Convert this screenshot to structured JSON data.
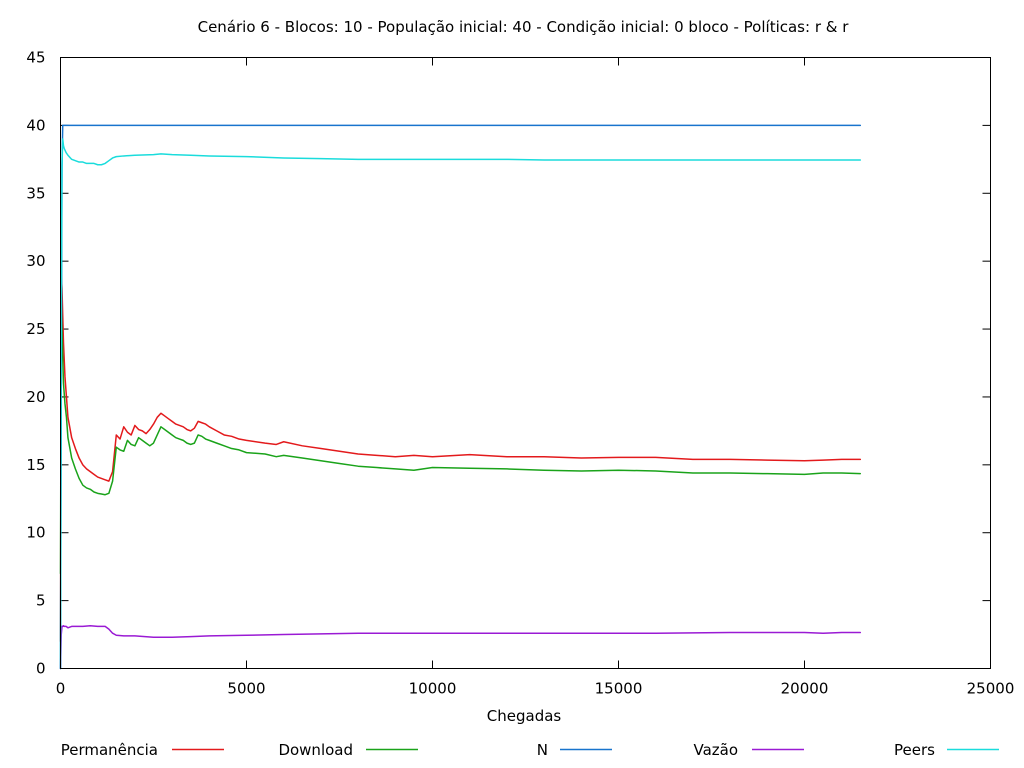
{
  "chart_data": {
    "type": "line",
    "title": "Cenário 6 - Blocos: 10 - População inicial: 40 - Condição inicial: 0 bloco - Políticas: r & r",
    "xlabel": "Chegadas",
    "ylabel": "",
    "xlim": [
      0,
      25000
    ],
    "ylim": [
      0,
      45
    ],
    "xticks": [
      0,
      5000,
      10000,
      15000,
      20000,
      25000
    ],
    "yticks": [
      0,
      5,
      10,
      15,
      20,
      25,
      30,
      35,
      40,
      45
    ],
    "grid": false,
    "legend_position": "bottom",
    "series": [
      {
        "name": "Permanência",
        "color": "#e31a1c",
        "x": [
          0,
          20,
          40,
          60,
          80,
          120,
          160,
          200,
          300,
          400,
          500,
          600,
          700,
          800,
          900,
          1000,
          1100,
          1200,
          1300,
          1400,
          1500,
          1600,
          1700,
          1800,
          1900,
          2000,
          2100,
          2200,
          2300,
          2400,
          2500,
          2600,
          2700,
          2800,
          2900,
          3000,
          3100,
          3200,
          3300,
          3400,
          3500,
          3600,
          3700,
          3800,
          3900,
          4000,
          4200,
          4400,
          4600,
          4800,
          5000,
          5500,
          5800,
          6000,
          6500,
          7000,
          7500,
          8000,
          8500,
          9000,
          9500,
          10000,
          11000,
          12000,
          13000,
          14000,
          15000,
          16000,
          17000,
          18000,
          19000,
          20000,
          20500,
          21000,
          21500
        ],
        "y": [
          2,
          29,
          28,
          26,
          24,
          21.5,
          20,
          18.5,
          17,
          16.2,
          15.5,
          15,
          14.7,
          14.5,
          14.3,
          14.1,
          14,
          13.9,
          13.8,
          14.5,
          17.2,
          16.9,
          17.8,
          17.4,
          17.2,
          17.9,
          17.6,
          17.5,
          17.3,
          17.6,
          18,
          18.5,
          18.8,
          18.6,
          18.4,
          18.2,
          18,
          17.9,
          17.8,
          17.6,
          17.5,
          17.7,
          18.2,
          18.1,
          18,
          17.8,
          17.5,
          17.2,
          17.1,
          16.9,
          16.8,
          16.6,
          16.5,
          16.7,
          16.4,
          16.2,
          16,
          15.8,
          15.7,
          15.6,
          15.7,
          15.6,
          15.75,
          15.6,
          15.6,
          15.5,
          15.55,
          15.55,
          15.4,
          15.4,
          15.35,
          15.3,
          15.35,
          15.4,
          15.4
        ]
      },
      {
        "name": "Download",
        "color": "#1aa31a",
        "x": [
          0,
          20,
          40,
          60,
          80,
          120,
          160,
          200,
          300,
          400,
          500,
          600,
          700,
          800,
          900,
          1000,
          1100,
          1200,
          1300,
          1400,
          1500,
          1600,
          1700,
          1800,
          1900,
          2000,
          2100,
          2200,
          2300,
          2400,
          2500,
          2600,
          2700,
          2800,
          2900,
          3000,
          3100,
          3200,
          3300,
          3400,
          3500,
          3600,
          3700,
          3800,
          3900,
          4000,
          4200,
          4400,
          4600,
          4800,
          5000,
          5500,
          5800,
          6000,
          6500,
          7000,
          7500,
          8000,
          8500,
          9000,
          9500,
          10000,
          11000,
          12000,
          13000,
          14000,
          15000,
          16000,
          17000,
          18000,
          19000,
          20000,
          20500,
          21000,
          21500
        ],
        "y": [
          7,
          27,
          25,
          23,
          21,
          19.5,
          18.5,
          17,
          15.5,
          14.7,
          14,
          13.5,
          13.3,
          13.2,
          13,
          12.9,
          12.85,
          12.8,
          12.9,
          13.8,
          16.3,
          16.1,
          16,
          16.8,
          16.5,
          16.4,
          17,
          16.8,
          16.6,
          16.4,
          16.6,
          17.2,
          17.8,
          17.6,
          17.4,
          17.2,
          17,
          16.9,
          16.8,
          16.6,
          16.5,
          16.6,
          17.2,
          17.1,
          16.9,
          16.8,
          16.6,
          16.4,
          16.2,
          16.1,
          15.9,
          15.8,
          15.6,
          15.7,
          15.5,
          15.3,
          15.1,
          14.9,
          14.8,
          14.7,
          14.6,
          14.8,
          14.75,
          14.7,
          14.6,
          14.55,
          14.6,
          14.55,
          14.4,
          14.4,
          14.35,
          14.3,
          14.4,
          14.4,
          14.35
        ]
      },
      {
        "name": "N",
        "color": "#1874cd",
        "x": [
          0,
          20,
          40,
          60,
          100,
          21500
        ],
        "y": [
          0,
          20,
          37,
          40,
          40,
          40
        ]
      },
      {
        "name": "Vazão",
        "color": "#9a1ad4",
        "x": [
          0,
          20,
          40,
          60,
          80,
          100,
          150,
          200,
          300,
          400,
          500,
          600,
          800,
          1000,
          1200,
          1300,
          1400,
          1500,
          1700,
          2000,
          2500,
          2700,
          3000,
          3500,
          4000,
          5000,
          6000,
          7000,
          8000,
          9000,
          10000,
          12000,
          14000,
          16000,
          18000,
          20000,
          20500,
          21000,
          21500
        ],
        "y": [
          0,
          2.5,
          3.1,
          3.1,
          3.15,
          3.1,
          3.1,
          3,
          3.1,
          3.1,
          3.1,
          3.1,
          3.15,
          3.1,
          3.1,
          2.9,
          2.6,
          2.45,
          2.4,
          2.4,
          2.3,
          2.3,
          2.3,
          2.35,
          2.4,
          2.45,
          2.5,
          2.55,
          2.6,
          2.6,
          2.6,
          2.6,
          2.6,
          2.6,
          2.65,
          2.65,
          2.6,
          2.65,
          2.65
        ]
      },
      {
        "name": "Peers",
        "color": "#1adcdc",
        "x": [
          0,
          20,
          40,
          60,
          80,
          100,
          150,
          200,
          300,
          400,
          500,
          600,
          700,
          800,
          900,
          1000,
          1100,
          1200,
          1300,
          1400,
          1500,
          1700,
          2000,
          2500,
          2700,
          3000,
          3500,
          4000,
          5000,
          6000,
          7000,
          8000,
          9000,
          10000,
          11000,
          12000,
          13000,
          14000,
          15000,
          16000,
          17000,
          18000,
          19000,
          20000,
          21000,
          21500
        ],
        "y": [
          0,
          25,
          37,
          39,
          38.5,
          38.3,
          38,
          37.8,
          37.5,
          37.4,
          37.3,
          37.3,
          37.2,
          37.2,
          37.2,
          37.1,
          37.1,
          37.2,
          37.4,
          37.6,
          37.7,
          37.75,
          37.8,
          37.85,
          37.9,
          37.85,
          37.8,
          37.75,
          37.7,
          37.6,
          37.55,
          37.5,
          37.5,
          37.5,
          37.5,
          37.5,
          37.45,
          37.45,
          37.45,
          37.45,
          37.45,
          37.45,
          37.45,
          37.45,
          37.45,
          37.45
        ]
      }
    ]
  }
}
